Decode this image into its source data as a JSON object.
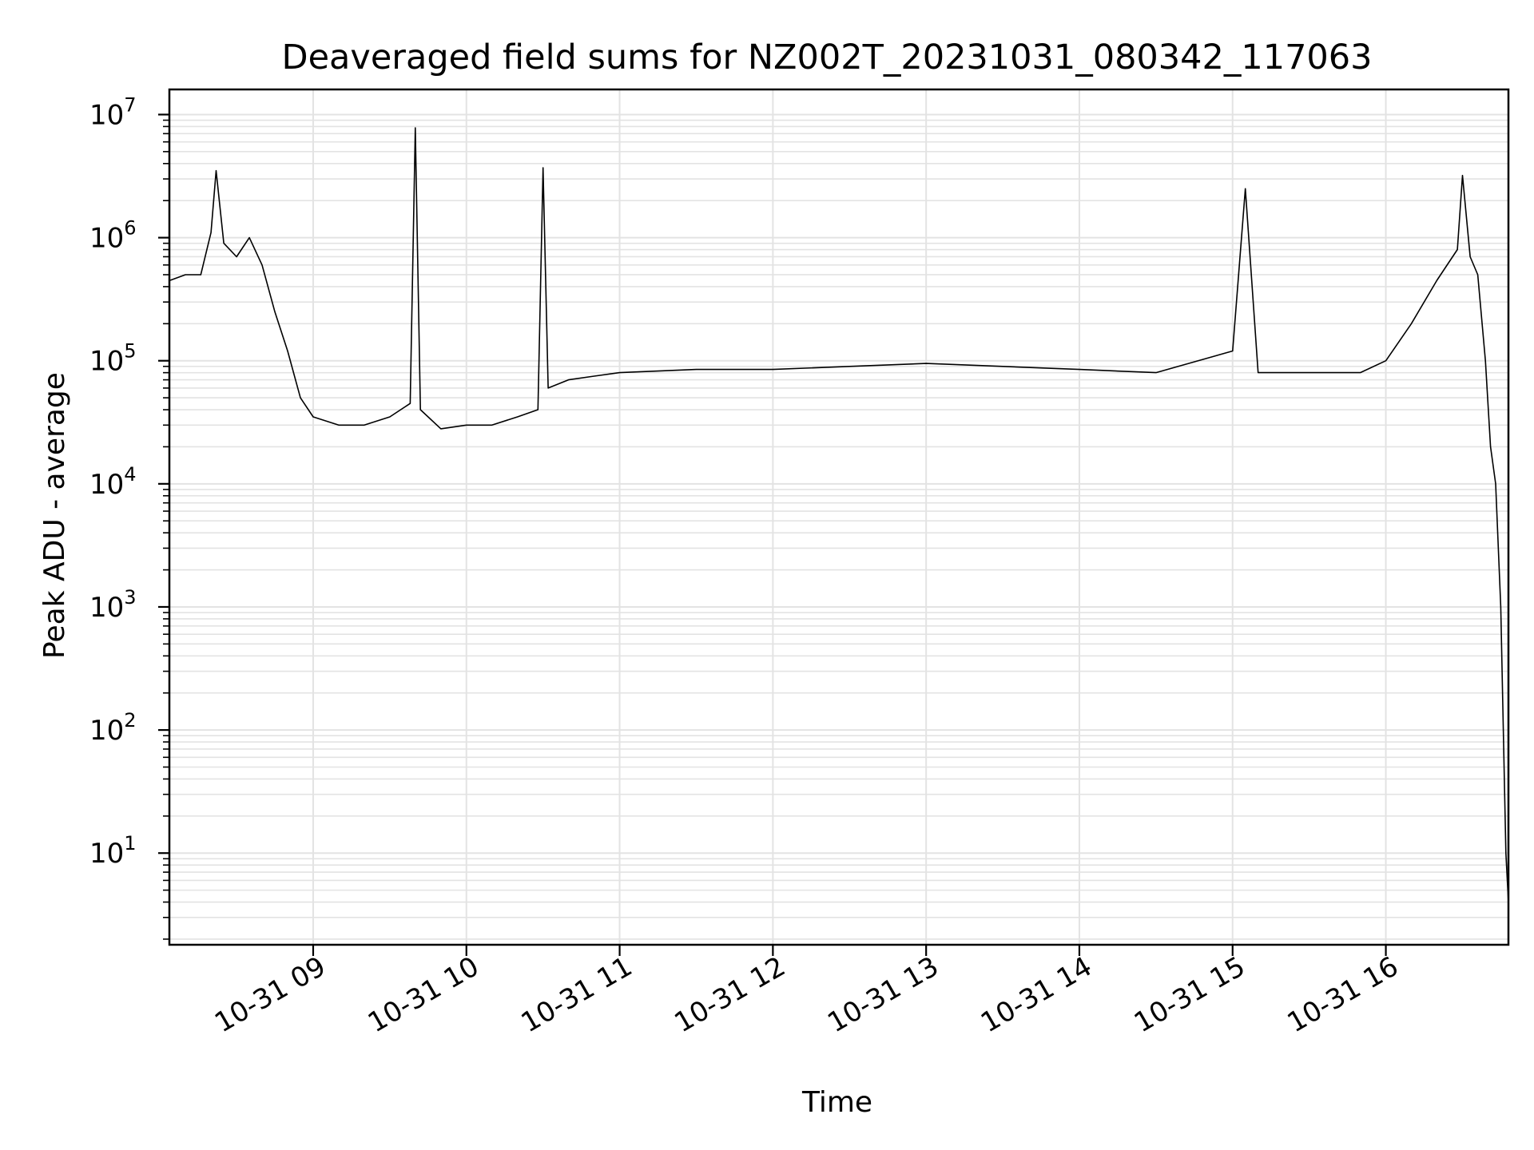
{
  "chart_data": {
    "type": "line",
    "title": "Deaveraged field sums for NZ002T_20231031_080342_117063",
    "xlabel": "Time",
    "ylabel": "Peak ADU - average",
    "yscale": "log",
    "ylim": [
      1.8,
      16000000
    ],
    "xlim": [
      "2023-10-31 08:03:42",
      "2023-10-31 16:48:00"
    ],
    "grid": true,
    "line_color": "#000000",
    "x_ticks": [
      {
        "label": "10-31 09",
        "value": "2023-10-31 09:00"
      },
      {
        "label": "10-31 10",
        "value": "2023-10-31 10:00"
      },
      {
        "label": "10-31 11",
        "value": "2023-10-31 11:00"
      },
      {
        "label": "10-31 12",
        "value": "2023-10-31 12:00"
      },
      {
        "label": "10-31 13",
        "value": "2023-10-31 13:00"
      },
      {
        "label": "10-31 14",
        "value": "2023-10-31 14:00"
      },
      {
        "label": "10-31 15",
        "value": "2023-10-31 15:00"
      },
      {
        "label": "10-31 16",
        "value": "2023-10-31 16:00"
      }
    ],
    "y_ticks": [
      {
        "base": "10",
        "exp": "1",
        "value": 10
      },
      {
        "base": "10",
        "exp": "2",
        "value": 100
      },
      {
        "base": "10",
        "exp": "3",
        "value": 1000
      },
      {
        "base": "10",
        "exp": "4",
        "value": 10000
      },
      {
        "base": "10",
        "exp": "5",
        "value": 100000
      },
      {
        "base": "10",
        "exp": "6",
        "value": 1000000
      },
      {
        "base": "10",
        "exp": "7",
        "value": 10000000
      }
    ],
    "series": [
      {
        "x": [
          "2023-10-31 08:04",
          "2023-10-31 08:10",
          "2023-10-31 08:16",
          "2023-10-31 08:20",
          "2023-10-31 08:22",
          "2023-10-31 08:25",
          "2023-10-31 08:30",
          "2023-10-31 08:35",
          "2023-10-31 08:40",
          "2023-10-31 08:45",
          "2023-10-31 08:50",
          "2023-10-31 08:55",
          "2023-10-31 09:00",
          "2023-10-31 09:10",
          "2023-10-31 09:20",
          "2023-10-31 09:30",
          "2023-10-31 09:38",
          "2023-10-31 09:40",
          "2023-10-31 09:42",
          "2023-10-31 09:50",
          "2023-10-31 10:00",
          "2023-10-31 10:10",
          "2023-10-31 10:20",
          "2023-10-31 10:28",
          "2023-10-31 10:30",
          "2023-10-31 10:32",
          "2023-10-31 10:40",
          "2023-10-31 10:50",
          "2023-10-31 11:00",
          "2023-10-31 11:30",
          "2023-10-31 12:00",
          "2023-10-31 12:30",
          "2023-10-31 13:00",
          "2023-10-31 13:30",
          "2023-10-31 14:00",
          "2023-10-31 14:30",
          "2023-10-31 15:00",
          "2023-10-31 15:05",
          "2023-10-31 15:10",
          "2023-10-31 15:30",
          "2023-10-31 15:50",
          "2023-10-31 16:00",
          "2023-10-31 16:10",
          "2023-10-31 16:20",
          "2023-10-31 16:28",
          "2023-10-31 16:30",
          "2023-10-31 16:33",
          "2023-10-31 16:36",
          "2023-10-31 16:39",
          "2023-10-31 16:41",
          "2023-10-31 16:43",
          "2023-10-31 16:45",
          "2023-10-31 16:46",
          "2023-10-31 16:47",
          "2023-10-31 16:48"
        ],
        "y": [
          450000,
          500000,
          500000,
          1100000,
          3500000,
          900000,
          700000,
          1000000,
          600000,
          250000,
          120000,
          50000,
          35000,
          30000,
          30000,
          35000,
          45000,
          7800000,
          40000,
          28000,
          30000,
          30000,
          35000,
          40000,
          3700000,
          60000,
          70000,
          75000,
          80000,
          85000,
          85000,
          90000,
          95000,
          90000,
          85000,
          80000,
          120000,
          2500000,
          80000,
          80000,
          80000,
          100000,
          200000,
          450000,
          800000,
          3200000,
          700000,
          500000,
          100000,
          20000,
          10000,
          1000,
          100,
          10,
          4
        ]
      }
    ]
  }
}
